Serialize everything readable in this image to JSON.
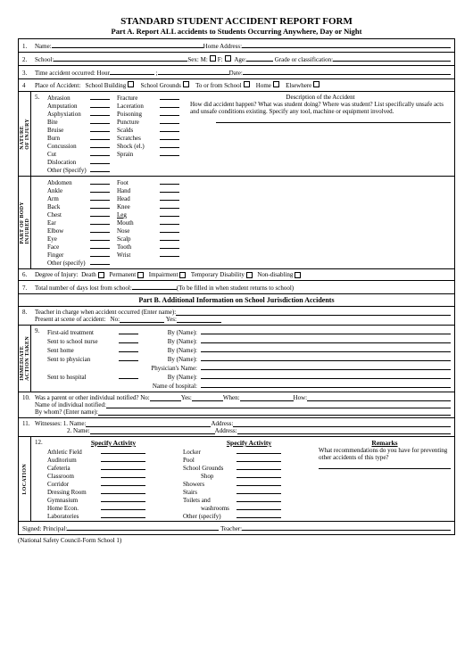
{
  "title": "STANDARD STUDENT ACCIDENT REPORT FORM",
  "subtitle": "Part A. Report ALL accidents to Students Occurring Anywhere, Day or Night",
  "r1": {
    "n": "1.",
    "name": "Name:",
    "home": "Home Address:"
  },
  "r2": {
    "n": "2.",
    "school": "School:",
    "sex": "Sex:",
    "m": "M:",
    "f": "F:",
    "age": "Age:",
    "grade": "Grade or classification:"
  },
  "r3": {
    "n": "3.",
    "txt": "Time accident occurred:   Hour",
    "date": "Date:"
  },
  "r4": {
    "n": "4",
    "place": "Place of Accident:",
    "sb": "School Building",
    "sg": "School Grounds",
    "ts": "To or from School",
    "hm": "Home",
    "ew": "Elsewhere"
  },
  "s5": {
    "n": "5.",
    "vl": "NATURE\nOF INJURY",
    "c1": [
      "Abrasion",
      "Amputation",
      "Asphyxiation",
      "Bite",
      "Bruise",
      "Burn",
      "Concussion",
      "Cut",
      "Dislocation",
      "Other (Specify)"
    ],
    "c2": [
      "Fracture",
      "Laceration",
      "Poisoning",
      "Puncture",
      "Scalds",
      "Scratches",
      "Shock (el.)",
      "Sprain"
    ],
    "dt": "Description of the Accident",
    "dd": "How did accident happen? What was student doing? Where was student? List specifically unsafe acts and unsafe conditions existing. Specify any tool, machine or equipment involved."
  },
  "sb": {
    "vl": "PART OF BODY\nINJURED",
    "c1": [
      "Abdomen",
      "Ankle",
      "Arm",
      "Back",
      "Chest",
      "Ear",
      "Elbow",
      "Eye",
      "Face",
      "Finger",
      "Other (specify)"
    ],
    "c2": [
      "Foot",
      "Hand",
      "Head",
      "Knee",
      "Leg",
      "Mouth",
      "Nose",
      "Scalp",
      "Tooth",
      "Wrist"
    ]
  },
  "r6": {
    "n": "6.",
    "txt": "Degree of Injury:",
    "o": [
      "Death",
      "Permanent",
      "Impairment",
      "Temporary Disability",
      "Non-disabling"
    ]
  },
  "r7": {
    "n": "7.",
    "txt": "Total number of days lost from school:",
    "note": "(To be filled in when student returns to school)"
  },
  "pb": "Part B. Additional Information on School Jurisdiction Accidents",
  "r8": {
    "n": "8.",
    "t1": "Teacher in charge when accident occurred (Enter name):",
    "t2": "Present at scene of accident:",
    "no": "No:",
    "yes": "Yes:"
  },
  "s9": {
    "n": "9.",
    "vl": "IMMEDIATE\nACTION TAKEN",
    "rows": [
      [
        "First-aid treatment",
        "By (Name):"
      ],
      [
        "Sent to school nurse",
        "By (Name):"
      ],
      [
        "Sent home",
        "By (Name):"
      ],
      [
        "Sent to physician",
        "By (Name):"
      ],
      [
        "",
        "Physician's Name:"
      ],
      [
        "Sent to hospital",
        "By (Name):"
      ],
      [
        "",
        "Name of hospital:"
      ]
    ]
  },
  "r10": {
    "n": "10.",
    "t1": "Was a parent or other individual notified?",
    "no": "No:",
    "yes": "Yes:",
    "when": "When:",
    "how": "How:",
    "t2": "Name of individual notified:",
    "t3": "By whom? (Enter name):"
  },
  "r11": {
    "n": "11.",
    "t1": "Witnesses: 1. Name:",
    "ad": "Address:",
    "t2": "2. Name:",
    "ad2": "Address:"
  },
  "s12": {
    "n": "12.",
    "vl": "LOCATION",
    "h1": "Specify Activity",
    "h2": "Specify Activity",
    "h3": "Remarks",
    "c1": [
      "Athletic Field",
      "Auditorium",
      "Cafeteria",
      "Classroom",
      "Corridor",
      "Dressing Room",
      "Gymnasium",
      "Home Econ.",
      "Laboratories"
    ],
    "c2": [
      "Locker",
      "Pool",
      "School Grounds",
      "Shop",
      "Showers",
      "Stairs",
      "Toilets and",
      "washrooms",
      "Other (specify)"
    ],
    "rem": "What recommendations do you have for preventing other accidents of this type?"
  },
  "sig": {
    "s": "Signed:",
    "p": "Principal:",
    "t": "Teacher:"
  },
  "foot": "(National Safety Council-Form School 1)"
}
